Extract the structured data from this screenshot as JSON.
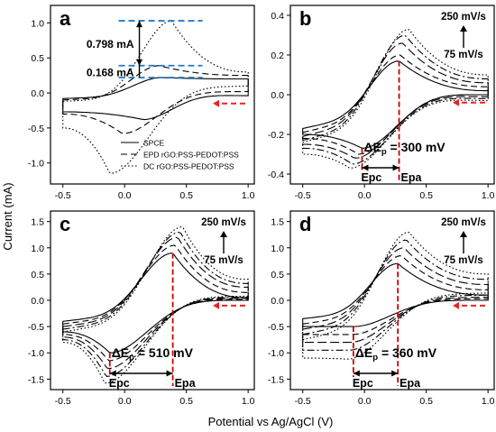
{
  "figure": {
    "ylabel": "Current (mA)",
    "xlabel": "Potential vs Ag/AgCl (V)"
  },
  "chart_data": [
    {
      "panel": "a",
      "type": "line",
      "xlim": [
        -0.6,
        1.05
      ],
      "ylim": [
        -1.3,
        1.25
      ],
      "xticks": [
        -0.5,
        0.0,
        0.5,
        1.0
      ],
      "xtick_labels": [
        "-0.5",
        "0.0",
        "0.5",
        "1.0"
      ],
      "yticks": [
        -1.0,
        -0.5,
        0.0,
        0.5,
        1.0
      ],
      "ytick_labels": [
        "-1.0",
        "-0.5",
        "0.0",
        "0.5",
        "1.0"
      ],
      "legend_position": "bottom-right",
      "series": [
        {
          "name": "SPCE",
          "dash": "solid",
          "peak_anodic": {
            "x": 0.3,
            "y": 0.22
          },
          "peak_cathodic": {
            "x": 0.15,
            "y": -0.38
          },
          "base_top": [
            -0.08,
            0.2
          ],
          "base_bottom": [
            -0.27,
            -0.04
          ]
        },
        {
          "name": "EPD rGO:PSS-PEDOT:PSS",
          "dash": "dashed",
          "peak_anodic": {
            "x": 0.28,
            "y": 0.39
          },
          "peak_cathodic": {
            "x": -0.02,
            "y": -0.58
          },
          "base_top": [
            -0.1,
            0.25
          ],
          "base_bottom": [
            -0.3,
            0.02
          ]
        },
        {
          "name": "DC rGO:PSS-PEDOT:PSS",
          "dash": "dotted",
          "peak_anodic": {
            "x": 0.38,
            "y": 1.03
          },
          "peak_cathodic": {
            "x": -0.12,
            "y": -1.15
          },
          "base_top": [
            -0.12,
            0.3
          ],
          "base_bottom": [
            -0.5,
            0.1
          ]
        }
      ],
      "annotations": [
        {
          "text": "0.798 mA"
        },
        {
          "text": "0.168 mA"
        }
      ]
    },
    {
      "panel": "b",
      "type": "line",
      "xlim": [
        -0.6,
        1.05
      ],
      "ylim": [
        -0.45,
        0.45
      ],
      "xticks": [
        -0.5,
        0.0,
        0.5,
        1.0
      ],
      "xtick_labels": [
        "-0.5",
        "0.0",
        "0.5",
        "1.0"
      ],
      "yticks": [
        -0.4,
        -0.2,
        0.0,
        0.2,
        0.4
      ],
      "ytick_labels": [
        "-0.4",
        "-0.2",
        "0.0",
        "0.2",
        "0.4"
      ],
      "scan_rates_label": {
        "top": "250 mV/s",
        "bottom": "75 mV/s"
      },
      "delta_ep_label": "ΔE",
      "delta_ep_sub": "p",
      "delta_ep_value": "= 300 mV",
      "epc_label": "Epc",
      "epa_label": "Epa",
      "epc": -0.02,
      "epa": 0.28,
      "series": [
        {
          "dash": "solid",
          "peak_anodic": {
            "x": 0.28,
            "y": 0.17
          },
          "peak_cathodic": {
            "x": -0.02,
            "y": -0.27
          },
          "base_top": [
            -0.17,
            0.02
          ],
          "base_bottom": [
            -0.2,
            0.0
          ]
        },
        {
          "dash": "dashed",
          "peak_anodic": {
            "x": 0.29,
            "y": 0.2
          },
          "peak_cathodic": {
            "x": -0.05,
            "y": -0.3
          },
          "base_top": [
            -0.19,
            0.04
          ],
          "base_bottom": [
            -0.22,
            0.0
          ]
        },
        {
          "dash": "longdash",
          "peak_anodic": {
            "x": 0.31,
            "y": 0.26
          },
          "peak_cathodic": {
            "x": -0.08,
            "y": -0.32
          },
          "base_top": [
            -0.21,
            0.06
          ],
          "base_bottom": [
            -0.25,
            -0.01
          ]
        },
        {
          "dash": "dashdot",
          "peak_anodic": {
            "x": 0.33,
            "y": 0.3
          },
          "peak_cathodic": {
            "x": -0.1,
            "y": -0.35
          },
          "base_top": [
            -0.23,
            0.08
          ],
          "base_bottom": [
            -0.27,
            -0.02
          ]
        },
        {
          "dash": "dotted",
          "peak_anodic": {
            "x": 0.36,
            "y": 0.33
          },
          "peak_cathodic": {
            "x": -0.12,
            "y": -0.37
          },
          "base_top": [
            -0.24,
            0.1
          ],
          "base_bottom": [
            -0.3,
            -0.03
          ]
        }
      ]
    },
    {
      "panel": "c",
      "type": "line",
      "xlim": [
        -0.6,
        1.05
      ],
      "ylim": [
        -1.7,
        1.7
      ],
      "xticks": [
        -0.5,
        0.0,
        0.5,
        1.0
      ],
      "xtick_labels": [
        "-0.5",
        "0.0",
        "0.5",
        "1.0"
      ],
      "yticks": [
        -1.5,
        -1.0,
        -0.5,
        0.0,
        0.5,
        1.0,
        1.5
      ],
      "ytick_labels": [
        "-1.5",
        "-1.0",
        "-0.5",
        "0.0",
        "0.5",
        "1.0",
        "1.5"
      ],
      "scan_rates_label": {
        "top": "250 mV/s",
        "bottom": "75 mV/s"
      },
      "delta_ep_label": "ΔE",
      "delta_ep_sub": "p",
      "delta_ep_value": "= 510 mV",
      "epc_label": "Epc",
      "epa_label": "Epa",
      "epc": -0.12,
      "epa": 0.39,
      "series": [
        {
          "dash": "solid",
          "peak_anodic": {
            "x": 0.39,
            "y": 0.9
          },
          "peak_cathodic": {
            "x": -0.12,
            "y": -1.0
          },
          "base_top": [
            -0.4,
            0.05
          ],
          "base_bottom": [
            -0.6,
            0.0
          ]
        },
        {
          "dash": "dashed",
          "peak_anodic": {
            "x": 0.41,
            "y": 1.05
          },
          "peak_cathodic": {
            "x": -0.13,
            "y": -1.15
          },
          "base_top": [
            -0.45,
            0.15
          ],
          "base_bottom": [
            -0.65,
            0.02
          ]
        },
        {
          "dash": "longdash",
          "peak_anodic": {
            "x": 0.43,
            "y": 1.2
          },
          "peak_cathodic": {
            "x": -0.14,
            "y": -1.3
          },
          "base_top": [
            -0.5,
            0.25
          ],
          "base_bottom": [
            -0.7,
            0.04
          ]
        },
        {
          "dash": "dashdot",
          "peak_anodic": {
            "x": 0.45,
            "y": 1.3
          },
          "peak_cathodic": {
            "x": -0.15,
            "y": -1.45
          },
          "base_top": [
            -0.55,
            0.32
          ],
          "base_bottom": [
            -0.75,
            0.06
          ]
        },
        {
          "dash": "dotted",
          "peak_anodic": {
            "x": 0.47,
            "y": 1.4
          },
          "peak_cathodic": {
            "x": -0.16,
            "y": -1.58
          },
          "base_top": [
            -0.6,
            0.4
          ],
          "base_bottom": [
            -0.8,
            0.08
          ]
        }
      ]
    },
    {
      "panel": "d",
      "type": "line",
      "xlim": [
        -0.6,
        1.05
      ],
      "ylim": [
        -1.7,
        1.7
      ],
      "xticks": [
        -0.5,
        0.0,
        0.5,
        1.0
      ],
      "xtick_labels": [
        "-0.5",
        "0.0",
        "0.5",
        "1.0"
      ],
      "yticks": [
        -1.5,
        -1.0,
        -0.5,
        0.0,
        0.5,
        1.0,
        1.5
      ],
      "ytick_labels": [
        "-1.5",
        "-1.0",
        "-0.5",
        "0.0",
        "0.5",
        "1.0",
        "1.5"
      ],
      "scan_rates_label": {
        "top": "250 mV/s",
        "bottom": "75 mV/s"
      },
      "delta_ep_label": "ΔE",
      "delta_ep_sub": "p",
      "delta_ep_value": "= 360 mV",
      "epc_label": "Epc",
      "epa_label": "Epa",
      "epc": -0.09,
      "epa": 0.27,
      "series": [
        {
          "dash": "solid",
          "peak_anodic": {
            "x": 0.27,
            "y": 0.7
          },
          "peak_cathodic": {
            "x": -0.09,
            "y": -0.5
          },
          "base_top": [
            -0.35,
            0.1
          ],
          "base_bottom": [
            -0.5,
            0.0
          ]
        },
        {
          "dash": "dashed",
          "peak_anodic": {
            "x": 0.3,
            "y": 0.85
          },
          "peak_cathodic": {
            "x": -0.1,
            "y": -0.65
          },
          "base_top": [
            -0.45,
            0.2
          ],
          "base_bottom": [
            -0.65,
            0.03
          ]
        },
        {
          "dash": "longdash",
          "peak_anodic": {
            "x": 0.32,
            "y": 1.0
          },
          "peak_cathodic": {
            "x": -0.12,
            "y": -0.8
          },
          "base_top": [
            -0.55,
            0.3
          ],
          "base_bottom": [
            -0.8,
            0.06
          ]
        },
        {
          "dash": "dashdot",
          "peak_anodic": {
            "x": 0.34,
            "y": 1.15
          },
          "peak_cathodic": {
            "x": -0.13,
            "y": -0.95
          },
          "base_top": [
            -0.65,
            0.4
          ],
          "base_bottom": [
            -0.95,
            0.1
          ]
        },
        {
          "dash": "dotted",
          "peak_anodic": {
            "x": 0.36,
            "y": 1.3
          },
          "peak_cathodic": {
            "x": -0.14,
            "y": -1.12
          },
          "base_top": [
            -0.75,
            0.5
          ],
          "base_bottom": [
            -1.1,
            0.14
          ]
        }
      ]
    }
  ],
  "colors": {
    "axis": "#000000",
    "curve": "#000000",
    "peak_marker": "#cc0000",
    "scan_arrow": "#ee2222",
    "level_guide": "#1e7ac8"
  }
}
